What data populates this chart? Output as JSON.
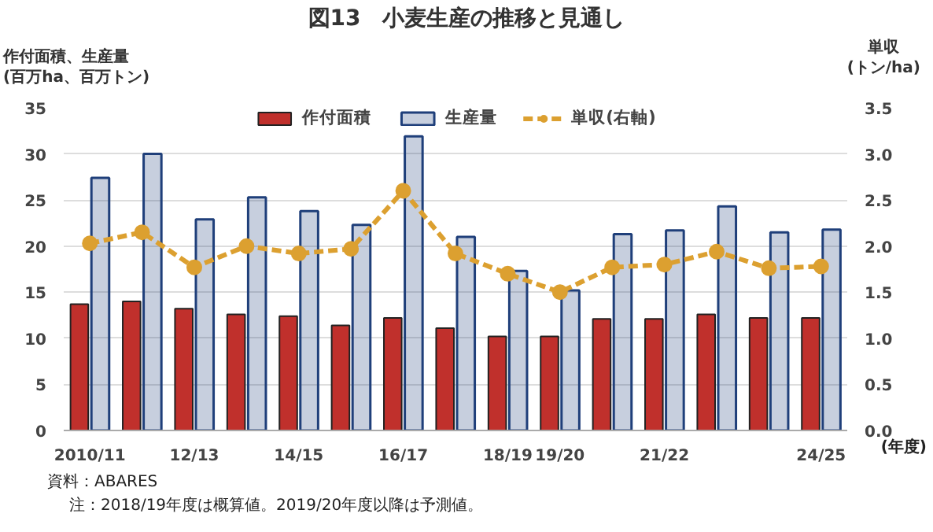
{
  "chart_data": {
    "type": "bar",
    "title": "図13　小麦生産の推移と見通し",
    "ylabel": "作付面積、生産量\n(百万ha、百万トン)",
    "y2label": "単収\n(トン/ha)",
    "xlabel": "(年度)",
    "categories": [
      "2010/11",
      null,
      "12/13",
      null,
      "14/15",
      null,
      "16/17",
      null,
      "18/19",
      "19/20",
      null,
      "21/22",
      null,
      null,
      "24/25"
    ],
    "series": [
      {
        "name": "作付面積",
        "color": "#c0302c",
        "values": [
          13.7,
          14.0,
          13.2,
          12.6,
          12.4,
          11.4,
          12.2,
          11.1,
          10.2,
          10.2,
          12.1,
          12.1,
          12.6,
          12.2,
          12.2
        ]
      },
      {
        "name": "生産量",
        "color": "#1f3f7a",
        "values": [
          27.4,
          30.0,
          22.9,
          25.3,
          23.8,
          22.3,
          31.9,
          21.0,
          17.3,
          15.2,
          21.3,
          21.7,
          24.3,
          21.5,
          21.8
        ]
      },
      {
        "name": "単収(右軸)",
        "type": "line",
        "axis": "y2",
        "color": "#dca030",
        "marker": "circle",
        "line_style": "dashed",
        "values": [
          2.03,
          2.15,
          1.77,
          2.0,
          1.92,
          1.97,
          2.6,
          1.92,
          1.7,
          1.5,
          1.77,
          1.8,
          1.94,
          1.76,
          1.78
        ]
      }
    ],
    "ylim": [
      0,
      35
    ],
    "yticks": [
      0,
      5,
      10,
      15,
      20,
      25,
      30,
      35
    ],
    "y2lim": [
      0,
      3.5
    ],
    "y2ticks": [
      {
        "value": 0,
        "label": "0.0"
      },
      {
        "value": 0.5,
        "label": "0.5"
      },
      {
        "value": 1,
        "label": "1.0"
      },
      {
        "value": 1.5,
        "label": "1.5"
      },
      {
        "value": 2,
        "label": "2.0"
      },
      {
        "value": 2.5,
        "label": "2.5"
      },
      {
        "value": 3,
        "label": "3.0"
      },
      {
        "value": 3.5,
        "label": "3.5"
      }
    ],
    "grid": "y",
    "legend": "top",
    "annotations": [
      "資料：ABARES",
      "注：2018/19年度は概算値。2019/20年度以降は予測値。"
    ]
  }
}
